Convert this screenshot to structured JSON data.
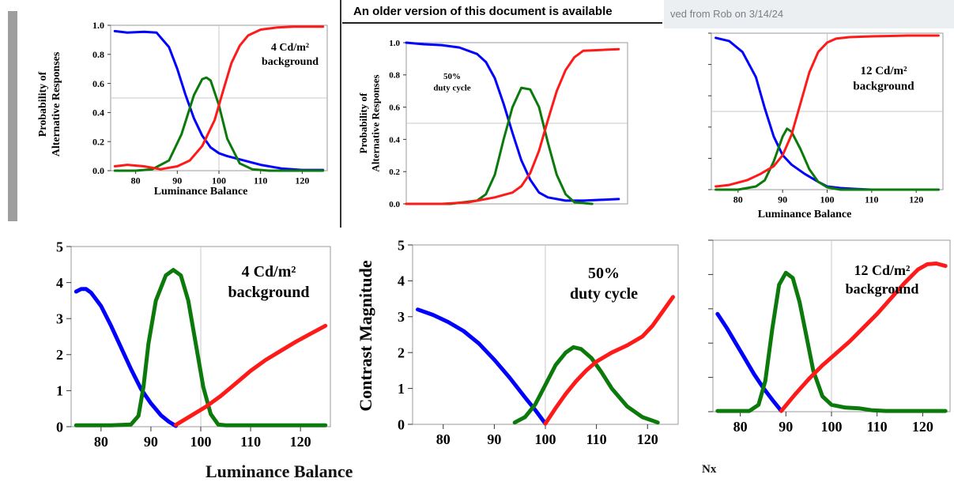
{
  "banners": {
    "older_version": "An older version of this document is available",
    "saved_note": "ved from Rob on 3/14/24"
  },
  "cropped_texts": {
    "bottom_left": "Luminance Balance",
    "bottom_right": "Nx"
  },
  "colors": {
    "blue": "#0000ff",
    "green": "#0b7a0b",
    "red": "#ff1a1a",
    "grid": "#c8c8c8"
  },
  "chart_data": [
    {
      "id": "top-left",
      "type": "line",
      "annotation": [
        "4 Cd/m²",
        "background"
      ],
      "xlabel": "Luminance Balance",
      "ylabel": [
        "Probability of",
        "Alternative Responses"
      ],
      "xlim": [
        74,
        126
      ],
      "ylim": [
        0,
        1.0
      ],
      "xticks": [
        80,
        90,
        100,
        110,
        120
      ],
      "yticks": [
        0.0,
        0.2,
        0.4,
        0.6,
        0.8,
        1.0
      ],
      "ytick_labels": [
        "0.0",
        "0.2",
        "0.4",
        "0.6",
        "0.8",
        "1.0"
      ],
      "grid": {
        "x": [
          100
        ],
        "y": [
          0.5
        ]
      },
      "series": [
        {
          "color": "blue",
          "x": [
            75,
            78,
            82,
            85,
            88,
            90,
            92,
            94,
            96,
            98,
            100,
            102,
            106,
            110,
            115,
            120,
            125
          ],
          "y": [
            0.96,
            0.95,
            0.955,
            0.95,
            0.85,
            0.7,
            0.52,
            0.36,
            0.24,
            0.16,
            0.12,
            0.1,
            0.07,
            0.04,
            0.015,
            0.005,
            0.005
          ]
        },
        {
          "color": "green",
          "x": [
            75,
            80,
            84,
            88,
            91,
            94,
            96,
            97,
            98,
            100,
            102,
            105,
            108,
            112,
            125
          ],
          "y": [
            0.0,
            0.0,
            0.01,
            0.07,
            0.25,
            0.52,
            0.63,
            0.64,
            0.62,
            0.45,
            0.22,
            0.05,
            0.01,
            0.0,
            0.0
          ]
        },
        {
          "color": "red",
          "x": [
            75,
            78,
            82,
            86,
            90,
            93,
            96,
            99,
            101,
            103,
            105,
            107,
            110,
            114,
            118,
            125
          ],
          "y": [
            0.03,
            0.04,
            0.03,
            0.01,
            0.03,
            0.07,
            0.17,
            0.35,
            0.55,
            0.74,
            0.86,
            0.93,
            0.97,
            0.985,
            0.99,
            0.99
          ]
        }
      ]
    },
    {
      "id": "top-middle",
      "type": "line",
      "annotation": [
        "50%",
        "duty cycle"
      ],
      "xlabel": "",
      "ylabel": [
        "Probability of",
        "Alternative Responses"
      ],
      "xlim": [
        78,
        103
      ],
      "ylim": [
        0,
        1.0
      ],
      "xticks": [],
      "yticks": [
        0.0,
        0.2,
        0.4,
        0.6,
        0.8,
        1.0
      ],
      "ytick_labels": [
        "0.0",
        "0.2",
        "0.4",
        "0.6",
        "0.8",
        "1.0"
      ],
      "grid": {
        "x": [],
        "y": [
          0.5
        ]
      },
      "series": [
        {
          "color": "blue",
          "x": [
            78,
            80,
            82,
            84,
            86,
            87,
            88,
            89,
            90,
            91,
            92,
            93,
            94,
            96,
            98,
            100,
            102
          ],
          "y": [
            1.0,
            0.99,
            0.985,
            0.97,
            0.93,
            0.88,
            0.78,
            0.62,
            0.44,
            0.27,
            0.15,
            0.07,
            0.04,
            0.02,
            0.02,
            0.025,
            0.03
          ]
        },
        {
          "color": "green",
          "x": [
            78,
            83,
            86,
            87,
            88,
            89,
            90,
            91,
            92,
            93,
            94,
            95,
            96,
            97,
            99
          ],
          "y": [
            0.0,
            0.0,
            0.02,
            0.06,
            0.18,
            0.4,
            0.6,
            0.72,
            0.71,
            0.6,
            0.38,
            0.18,
            0.06,
            0.01,
            0.0
          ]
        },
        {
          "color": "red",
          "x": [
            78,
            82,
            85,
            88,
            90,
            91,
            92,
            93,
            94,
            95,
            96,
            97,
            98,
            100,
            102
          ],
          "y": [
            0.0,
            0.0,
            0.01,
            0.04,
            0.07,
            0.11,
            0.19,
            0.33,
            0.52,
            0.7,
            0.83,
            0.91,
            0.95,
            0.955,
            0.96
          ]
        }
      ]
    },
    {
      "id": "top-right",
      "type": "line",
      "annotation": [
        "12 Cd/m²",
        "background"
      ],
      "xlabel": "Luminance Balance",
      "ylabel": [],
      "xlim": [
        74,
        126
      ],
      "ylim": [
        0,
        1.0
      ],
      "xticks": [
        80,
        90,
        100,
        110,
        120
      ],
      "yticks": [
        0.0,
        0.2,
        0.4,
        0.6,
        0.8,
        1.0
      ],
      "ytick_labels": [],
      "grid": {
        "x": [
          100
        ],
        "y": [
          0.5
        ]
      },
      "series": [
        {
          "color": "blue",
          "x": [
            75,
            78,
            81,
            84,
            86,
            88,
            90,
            92,
            95,
            98,
            100,
            103,
            106,
            110,
            125
          ],
          "y": [
            0.97,
            0.95,
            0.88,
            0.72,
            0.52,
            0.34,
            0.22,
            0.16,
            0.1,
            0.05,
            0.02,
            0.01,
            0.005,
            0.0,
            0.0
          ]
        },
        {
          "color": "green",
          "x": [
            75,
            80,
            84,
            86,
            88,
            90,
            91,
            92,
            94,
            96,
            98,
            100,
            103,
            107,
            125
          ],
          "y": [
            0.0,
            0.0,
            0.02,
            0.06,
            0.18,
            0.34,
            0.39,
            0.37,
            0.26,
            0.13,
            0.05,
            0.015,
            0.0,
            0.0,
            0.0
          ]
        },
        {
          "color": "red",
          "x": [
            75,
            78,
            82,
            85,
            88,
            90,
            92,
            94,
            96,
            98,
            100,
            102,
            105,
            110,
            118,
            125
          ],
          "y": [
            0.02,
            0.03,
            0.06,
            0.1,
            0.15,
            0.22,
            0.35,
            0.55,
            0.75,
            0.88,
            0.94,
            0.965,
            0.975,
            0.98,
            0.985,
            0.985
          ]
        }
      ]
    },
    {
      "id": "bottom-left",
      "type": "line",
      "annotation": [
        "4 Cd/m²",
        "background"
      ],
      "xlabel": "",
      "ylabel": [],
      "xlim": [
        74,
        126
      ],
      "ylim": [
        0,
        5
      ],
      "xticks": [
        80,
        90,
        100,
        110,
        120
      ],
      "yticks": [
        0,
        1,
        2,
        3,
        4,
        5
      ],
      "ytick_labels": [
        "0",
        "1",
        "2",
        "3",
        "4",
        "5"
      ],
      "grid": {
        "x": [
          100
        ],
        "y": []
      },
      "series": [
        {
          "color": "blue",
          "x": [
            75,
            76,
            77,
            78,
            80,
            82,
            84,
            86,
            88,
            90,
            92,
            93.5,
            95
          ],
          "y": [
            3.75,
            3.82,
            3.82,
            3.72,
            3.35,
            2.8,
            2.2,
            1.6,
            1.05,
            0.65,
            0.32,
            0.15,
            0.02
          ]
        },
        {
          "color": "green",
          "x": [
            75,
            82,
            86,
            87.5,
            88.5,
            89.5,
            91,
            93,
            94.5,
            96,
            97.5,
            99,
            100.5,
            102,
            103.5,
            105,
            110,
            125
          ],
          "y": [
            0.04,
            0.04,
            0.06,
            0.3,
            1.1,
            2.3,
            3.5,
            4.2,
            4.35,
            4.2,
            3.5,
            2.3,
            1.1,
            0.35,
            0.06,
            0.04,
            0.04,
            0.04
          ]
        },
        {
          "color": "red",
          "x": [
            95,
            98,
            101,
            104,
            107,
            110,
            113,
            116,
            119,
            122,
            125
          ],
          "y": [
            0.05,
            0.3,
            0.55,
            0.85,
            1.2,
            1.55,
            1.85,
            2.1,
            2.35,
            2.58,
            2.8
          ]
        }
      ]
    },
    {
      "id": "bottom-middle",
      "type": "line",
      "annotation": [
        "50%",
        "duty cycle"
      ],
      "xlabel": "",
      "ylabel": [
        "Contrast Magnitude"
      ],
      "xlim": [
        74,
        126
      ],
      "ylim": [
        0,
        5
      ],
      "xticks": [
        80,
        90,
        100,
        110,
        120
      ],
      "yticks": [
        0,
        1,
        2,
        3,
        4,
        5
      ],
      "ytick_labels": [
        "0",
        "1",
        "2",
        "3",
        "4",
        "5"
      ],
      "grid": {
        "x": [
          100
        ],
        "y": []
      },
      "series": [
        {
          "color": "blue",
          "x": [
            75,
            78,
            81,
            84,
            87,
            90,
            93,
            96,
            98,
            100
          ],
          "y": [
            3.2,
            3.05,
            2.85,
            2.6,
            2.25,
            1.8,
            1.3,
            0.75,
            0.4,
            0.02
          ]
        },
        {
          "color": "green",
          "x": [
            94,
            96,
            98,
            100,
            102,
            104,
            105.5,
            107,
            109,
            111,
            113,
            116,
            119,
            122
          ],
          "y": [
            0.05,
            0.2,
            0.55,
            1.1,
            1.65,
            2.0,
            2.15,
            2.1,
            1.85,
            1.45,
            1.0,
            0.5,
            0.2,
            0.05
          ]
        },
        {
          "color": "red",
          "x": [
            100,
            102,
            104,
            106,
            108,
            110,
            113,
            116,
            119,
            121,
            123,
            125
          ],
          "y": [
            0.02,
            0.45,
            0.85,
            1.2,
            1.5,
            1.75,
            2.0,
            2.2,
            2.45,
            2.75,
            3.15,
            3.55
          ]
        }
      ]
    },
    {
      "id": "bottom-right",
      "type": "line",
      "annotation": [
        "12 Cd/m²",
        "background"
      ],
      "xlabel": "",
      "ylabel": [],
      "xlim": [
        74,
        126
      ],
      "ylim": [
        0,
        5
      ],
      "xticks": [
        80,
        90,
        100,
        110,
        120
      ],
      "yticks": [
        0,
        1,
        2,
        3,
        4,
        5
      ],
      "ytick_labels": [],
      "grid": {
        "x": [
          100
        ],
        "y": []
      },
      "series": [
        {
          "color": "blue",
          "x": [
            75,
            77,
            79,
            81,
            83,
            85,
            87,
            89
          ],
          "y": [
            2.85,
            2.45,
            2.0,
            1.55,
            1.1,
            0.7,
            0.35,
            0.02
          ]
        },
        {
          "color": "green",
          "x": [
            75,
            82,
            84,
            85.5,
            87,
            88.5,
            90,
            91.5,
            93,
            94.5,
            96,
            98,
            100,
            103,
            106,
            109,
            112,
            125
          ],
          "y": [
            0.02,
            0.02,
            0.2,
            0.9,
            2.4,
            3.7,
            4.05,
            3.9,
            3.2,
            2.2,
            1.2,
            0.45,
            0.2,
            0.12,
            0.1,
            0.04,
            0.02,
            0.02
          ]
        },
        {
          "color": "red",
          "x": [
            89,
            92,
            95,
            98,
            101,
            104,
            107,
            110,
            113,
            116,
            119,
            121,
            123,
            125
          ],
          "y": [
            0.02,
            0.5,
            0.95,
            1.35,
            1.7,
            2.05,
            2.45,
            2.85,
            3.3,
            3.75,
            4.15,
            4.3,
            4.32,
            4.25
          ]
        }
      ]
    }
  ]
}
